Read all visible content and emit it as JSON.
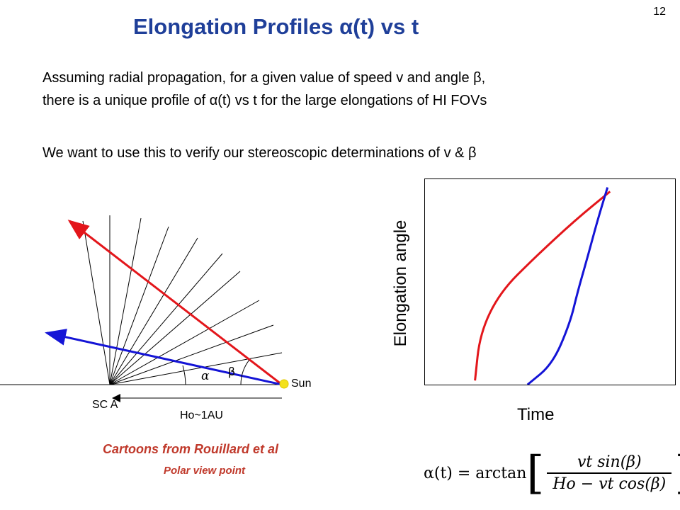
{
  "slide_number": "12",
  "title": "Elongation Profiles α(t) vs t",
  "paragraph1": [
    "Assuming radial propagation, for a given value of speed v and angle β,",
    "there is a unique profile of α(t) vs t for the large elongations of HI FOVs"
  ],
  "paragraph2": "We want to use this to verify our stereoscopic determinations of v & β",
  "diagram": {
    "sun_label": "Sun",
    "sc_label": "SC A",
    "distance_label": "Ho~1AU",
    "alpha_symbol": "α",
    "beta_symbol": "β",
    "colors": {
      "red": "#e3161b",
      "blue": "#1414d6",
      "sun": "#f3e11c",
      "radials": "#000000"
    }
  },
  "captions": {
    "line1": "Cartoons from Rouillard et al",
    "line2": "Polar view point"
  },
  "chart_data": {
    "type": "line",
    "xlabel": "Time",
    "ylabel": "Elongation angle",
    "axes_ticks": false,
    "series": [
      {
        "color": "#e3161b",
        "x": [
          0.2,
          0.22,
          0.3,
          0.44,
          0.6,
          0.74
        ],
        "y": [
          0.02,
          0.25,
          0.45,
          0.62,
          0.8,
          0.94
        ]
      },
      {
        "color": "#1414d6",
        "x": [
          0.41,
          0.51,
          0.58,
          0.61,
          0.65,
          0.69,
          0.73
        ],
        "y": [
          0.0,
          0.1,
          0.3,
          0.45,
          0.62,
          0.8,
          0.96
        ]
      }
    ]
  },
  "formula": {
    "lhs": "α(t) = arctan",
    "numerator": "vt sin(β)",
    "denominator": "Ho − vt cos(β)"
  }
}
